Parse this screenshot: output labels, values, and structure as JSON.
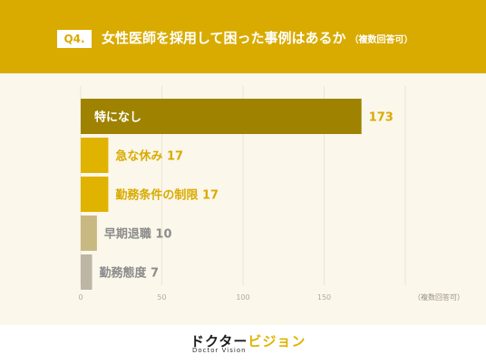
{
  "header": {
    "badge": "Q4.",
    "title": "女性医師を採用して困った事例はあるか",
    "note": "（複数回答可）"
  },
  "chart_data": {
    "type": "bar",
    "orientation": "horizontal",
    "categories": [
      "特になし",
      "急な休み",
      "勤務条件の制限",
      "早期退職",
      "勤務態度"
    ],
    "values": [
      173,
      17,
      17,
      10,
      7
    ],
    "xlim": [
      0,
      200
    ],
    "xticks": [
      "0",
      "50",
      "100",
      "150"
    ],
    "x_note": "（複数回答可）",
    "colors": [
      "#9e8200",
      "#e0b300",
      "#e0b300",
      "#c8b882",
      "#bdb6a4"
    ],
    "label_colors": [
      "#d9ab00",
      "#d9ab00",
      "#d9ab00",
      "#8c8c8c",
      "#8c8c8c"
    ]
  },
  "footer": {
    "logo_main_1": "ドクター",
    "logo_main_2": "ビジョン",
    "logo_sub": "Doctor Vision"
  }
}
